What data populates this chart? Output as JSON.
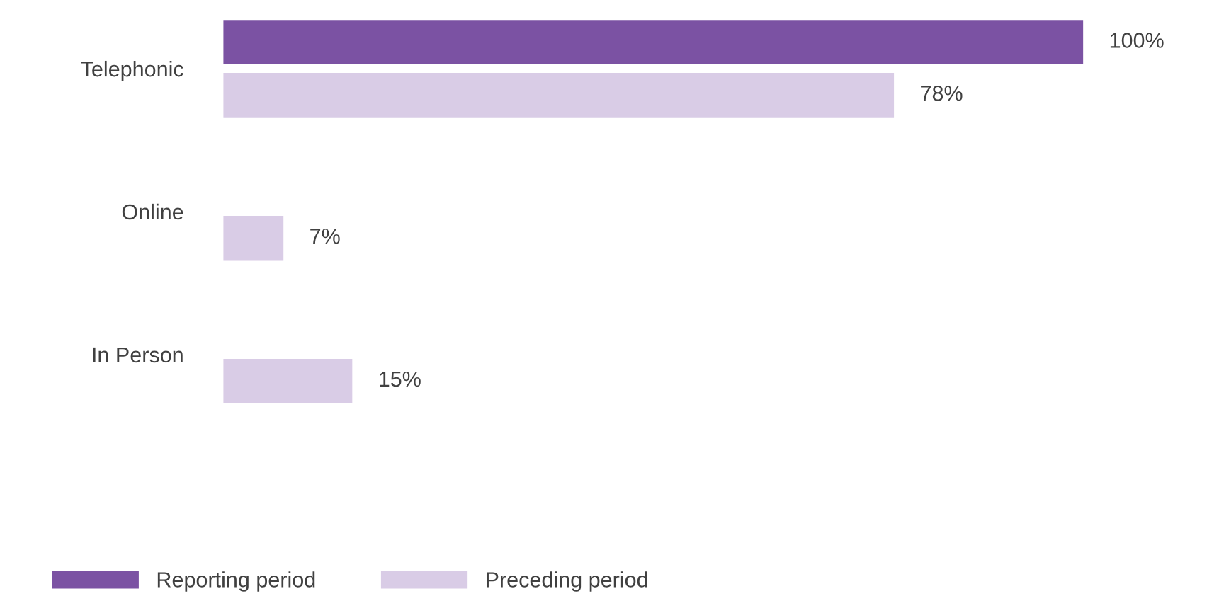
{
  "chart_data": {
    "type": "bar",
    "orientation": "horizontal",
    "categories": [
      "Telephonic",
      "Online",
      "In Person"
    ],
    "series": [
      {
        "name": "Reporting period",
        "color": "#7b52a3",
        "values": [
          100,
          null,
          null
        ],
        "value_labels": [
          "100%",
          null,
          null
        ]
      },
      {
        "name": "Preceding period",
        "color": "#d9cce6",
        "values": [
          78,
          7,
          15
        ],
        "value_labels": [
          "78%",
          "7%",
          "15%"
        ]
      }
    ],
    "legend": "bottom left",
    "grid": false
  }
}
